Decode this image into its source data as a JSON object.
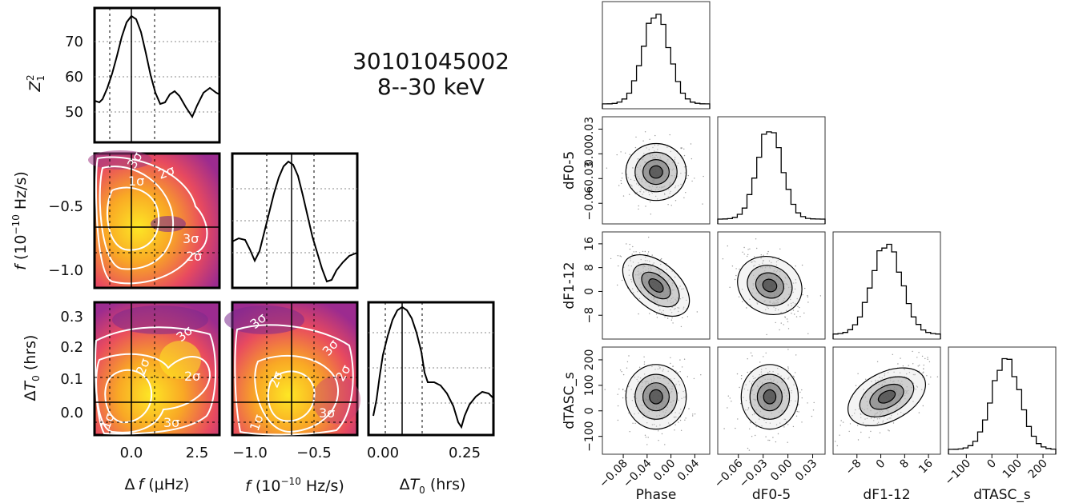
{
  "annotation": {
    "obsid": "30101045002",
    "band": "8--30 keV"
  },
  "chart_data": [
    {
      "type": "grid",
      "id": "zsearch-corner",
      "axes_labels": {
        "z": "Z",
        "z_sub": "1",
        "z_sup": "2",
        "f_delta": "Δ",
        "f_var": "f",
        "f_unit": " (μHz)",
        "fdot_var": "f",
        "fdot_prefix": " (10",
        "fdot_exp": "−10",
        "fdot_unit": " Hz/s)",
        "t0_delta": "Δ",
        "t0_var": "T",
        "t0_sub": "0",
        "t0_unit": " (hrs)"
      },
      "ticks": {
        "z_y": [
          "70",
          "60",
          "50"
        ],
        "fdot_y": [
          "−0.5",
          "−1.0"
        ],
        "t0_y": [
          "0.3",
          "0.2",
          "0.1",
          "0.0"
        ],
        "x_df": [
          "0.0",
          "2.5"
        ],
        "x_fdot": [
          "−1.0",
          "−0.5"
        ],
        "x_t0": [
          "0.00",
          "0.25"
        ]
      },
      "contour_labels": [
        "1σ",
        "2σ",
        "3σ"
      ],
      "best_fit": {
        "df": 0.0,
        "fdot": -0.68,
        "t0": 0.03
      },
      "intervals": {
        "df": [
          -0.9,
          0.9
        ],
        "fdot": [
          -1.1,
          -0.32
        ],
        "t0": [
          -0.02,
          0.11
        ]
      },
      "colors": {
        "low": "#6a1b8a",
        "mid": "#e84a5f",
        "high": "#fde725"
      }
    },
    {
      "type": "grid",
      "id": "mcmc-corner",
      "params": [
        "Phase",
        "dF0-5",
        "dF1-12",
        "dTASC_s"
      ],
      "ticks": {
        "Phase": [
          "−0.08",
          "−0.04",
          "0.00",
          "0.04"
        ],
        "dF0-5": [
          "−0.06",
          "−0.03",
          "0.00",
          "0.03"
        ],
        "dF1-12": [
          "−8",
          "0",
          "8",
          "16"
        ],
        "dTASC_s": [
          "−100",
          "0",
          "100",
          "200"
        ]
      },
      "ranges": {
        "Phase": [
          -0.115,
          0.065
        ],
        "dF0-5": [
          -0.085,
          0.045
        ],
        "dF1-12": [
          -16,
          20
        ],
        "dTASC_s": [
          -170,
          250
        ]
      },
      "means": {
        "Phase": -0.025,
        "dF0-5": -0.022,
        "dF1-12": 2,
        "dTASC_s": 55
      },
      "sigmas": {
        "Phase": 0.022,
        "dF0-5": 0.015,
        "dF1-12": 5,
        "dTASC_s": 55
      },
      "correlations": {
        "Phase-dF1-12": -0.75,
        "dF0-5-dF1-12": -0.4,
        "dF1-12-dTASC_s": 0.55
      }
    }
  ]
}
